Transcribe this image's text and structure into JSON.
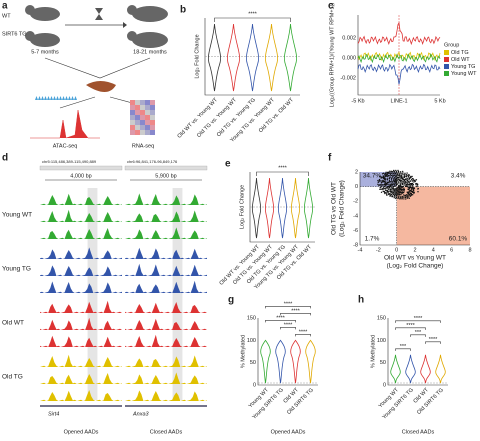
{
  "panels": {
    "a": {
      "letter": "a",
      "wt": "WT",
      "tg": "SIRT6 TG",
      "young_age": "5-7 months",
      "old_age": "18-21 months",
      "atac": "ATAC-seq",
      "rna": "RNA-seq"
    },
    "b": {
      "letter": "b",
      "ylabel": "Log₂ Fold Change",
      "sig": "****",
      "categories": [
        "Old WT vs. Young WT",
        "Old TG vs. Young WT",
        "Old TG vs. Young TG",
        "Young TG vs. Young WT",
        "Old TG vs. Old WT"
      ]
    },
    "c": {
      "letter": "c",
      "ylabel": "Log₂((Group RPM+1)/(Young WT RPM+1))",
      "xticks": [
        "-5 Kb",
        "LINE-1",
        "5 Kb"
      ],
      "yticks": [
        "0.002",
        "0.000",
        "-0.002"
      ],
      "legend_title": "Group",
      "groups": [
        "Old TG",
        "Old WT",
        "Young TG",
        "Young WT"
      ]
    },
    "d": {
      "letter": "d",
      "loci": [
        "chr5:115,486,389-115,490,889",
        "chr6:96,841,176-96,849,176"
      ],
      "scales": [
        "4,000 bp",
        "5,900 bp"
      ],
      "groups": [
        "Young WT",
        "Young TG",
        "Old WT",
        "Old TG"
      ],
      "genes": [
        "Sirt4",
        "Anxa3"
      ],
      "footer": [
        "Opened AADs",
        "Closed AADs"
      ]
    },
    "e": {
      "letter": "e",
      "ylabel": "Log₂ Fold Change",
      "sig": "****",
      "categories": [
        "Old WT vs. Young WT",
        "Old TG vs. Young WT",
        "Old TG vs. Young TG",
        "Young TG vs. Young WT",
        "Old TG vs. Old WT"
      ]
    },
    "f": {
      "letter": "f",
      "xlabel": "Old WT vs Young WT",
      "xlabel2": "(Log₂ Fold Change)",
      "ylabel": "Old TG vs Old WT",
      "ylabel2": "(Log₂ Fold Change)",
      "quadrants": [
        "34.7%",
        "3.4%",
        "1.7%",
        "60.1%"
      ],
      "xticks": [
        "-4",
        "-2",
        "0",
        "2",
        "4",
        "6",
        "8"
      ],
      "yticks": [
        "2",
        "0",
        "-2",
        "-4",
        "-6",
        "-8"
      ]
    },
    "g": {
      "letter": "g",
      "ylabel": "% Methylated",
      "yticks": [
        "150",
        "100",
        "50",
        "0"
      ],
      "categories": [
        "Young WT",
        "Young SIRT6 TG",
        "Old WT",
        "Old SIRT6 TG"
      ],
      "footer": "Opened AADs",
      "sigs": [
        "****",
        "****",
        "****",
        "****",
        "****"
      ]
    },
    "h": {
      "letter": "h",
      "ylabel": "% Methylated",
      "yticks": [
        "150",
        "100",
        "50",
        "0"
      ],
      "categories": [
        "Young WT",
        "Young SIRT6 TG",
        "Old WT",
        "Old SIRT6 TG"
      ],
      "footer": "Closed AADs",
      "sigs": [
        "***",
        "****",
        "***",
        "****",
        "****"
      ]
    }
  }
}
